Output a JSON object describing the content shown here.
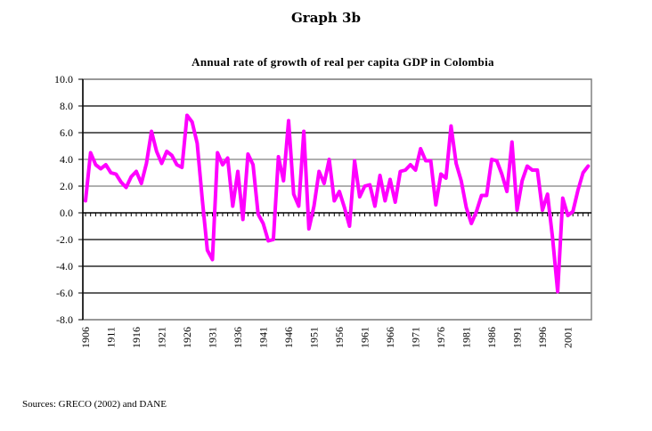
{
  "header": {
    "graph_label": "Graph 3b"
  },
  "footer": {
    "sources": "Sources: GRECO (2002) and DANE"
  },
  "chart_data": {
    "type": "line",
    "title": "Annual rate of  growth of real per capita GDP in Colombia",
    "xlabel": "",
    "ylabel": "",
    "ylim": [
      -8.0,
      10.0
    ],
    "yticks": [
      "10.0",
      "8.0",
      "6.0",
      "4.0",
      "2.0",
      "0.0",
      "-2.0",
      "-4.0",
      "-6.0",
      "-8.0"
    ],
    "ytick_values": [
      10,
      8,
      6,
      4,
      2,
      0,
      -2,
      -4,
      -6,
      -8
    ],
    "xtick_labels": [
      "1906",
      "1911",
      "1916",
      "1921",
      "1926",
      "1931",
      "1936",
      "1941",
      "1946",
      "1951",
      "1956",
      "1961",
      "1966",
      "1971",
      "1976",
      "1981",
      "1986",
      "1991",
      "1996",
      "2001"
    ],
    "x_start": 1906,
    "x_end": 2005,
    "grid": true,
    "legend": "none",
    "series": [
      {
        "name": "Annual rate of growth of real per capita GDP",
        "color": "#ff00ff",
        "x": [
          1906,
          1907,
          1908,
          1909,
          1910,
          1911,
          1912,
          1913,
          1914,
          1915,
          1916,
          1917,
          1918,
          1919,
          1920,
          1921,
          1922,
          1923,
          1924,
          1925,
          1926,
          1927,
          1928,
          1929,
          1930,
          1931,
          1932,
          1933,
          1934,
          1935,
          1936,
          1937,
          1938,
          1939,
          1940,
          1941,
          1942,
          1943,
          1944,
          1945,
          1946,
          1947,
          1948,
          1949,
          1950,
          1951,
          1952,
          1953,
          1954,
          1955,
          1956,
          1957,
          1958,
          1959,
          1960,
          1961,
          1962,
          1963,
          1964,
          1965,
          1966,
          1967,
          1968,
          1969,
          1970,
          1971,
          1972,
          1973,
          1974,
          1975,
          1976,
          1977,
          1978,
          1979,
          1980,
          1981,
          1982,
          1983,
          1984,
          1985,
          1986,
          1987,
          1988,
          1989,
          1990,
          1991,
          1992,
          1993,
          1994,
          1995,
          1996,
          1997,
          1998,
          1999,
          2000,
          2001,
          2002,
          2003,
          2004,
          2005
        ],
        "values": [
          0.9,
          4.5,
          3.6,
          3.3,
          3.6,
          3.0,
          2.9,
          2.3,
          1.9,
          2.7,
          3.1,
          2.2,
          3.7,
          6.1,
          4.6,
          3.7,
          4.6,
          4.3,
          3.6,
          3.4,
          7.3,
          6.8,
          5.2,
          1.0,
          -2.8,
          -3.5,
          4.5,
          3.6,
          4.1,
          0.5,
          3.1,
          -0.5,
          4.4,
          3.6,
          -0.1,
          -0.8,
          -2.1,
          -2.0,
          4.2,
          2.4,
          6.9,
          1.4,
          0.5,
          6.1,
          -1.2,
          0.5,
          3.1,
          2.2,
          4.0,
          0.9,
          1.6,
          0.4,
          -1.0,
          3.9,
          1.2,
          2.0,
          2.1,
          0.5,
          2.8,
          0.9,
          2.5,
          0.8,
          3.1,
          3.2,
          3.6,
          3.2,
          4.8,
          3.9,
          3.9,
          0.6,
          2.9,
          2.6,
          6.5,
          3.7,
          2.4,
          0.4,
          -0.8,
          0.1,
          1.3,
          1.3,
          4.0,
          3.9,
          2.9,
          1.6,
          5.3,
          0.2,
          2.4,
          3.5,
          3.2,
          3.2,
          0.2,
          1.4,
          -1.9,
          -5.9,
          1.1,
          -0.2,
          0.1,
          1.7,
          3.0,
          3.5
        ]
      }
    ]
  }
}
